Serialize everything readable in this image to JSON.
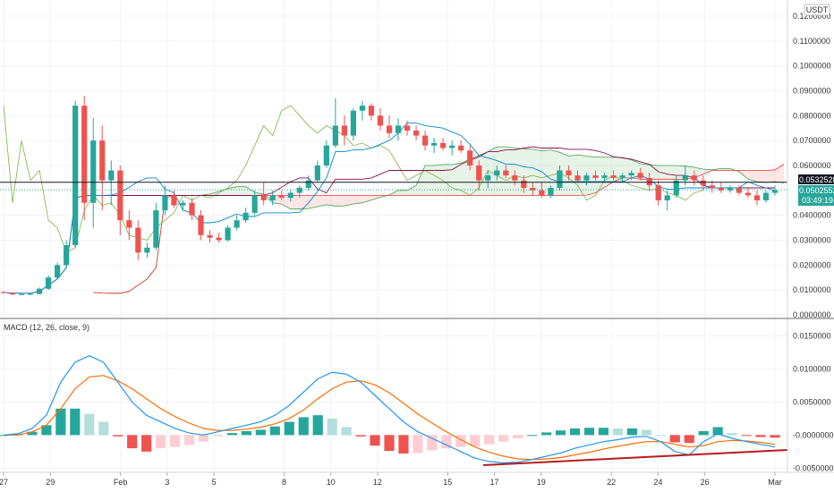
{
  "currency_badge": "USDT",
  "price_axis": {
    "labels": [
      "0.1200000",
      "0.1100000",
      "0.1000000",
      "0.0900000",
      "0.0800000",
      "0.0700000",
      "0.0600000",
      "0.0400000",
      "0.0300000",
      "0.0200000",
      "0.0100000",
      "0.0000000"
    ],
    "values": [
      0.12,
      0.11,
      0.1,
      0.09,
      0.08,
      0.07,
      0.06,
      0.04,
      0.03,
      0.02,
      0.01,
      0.0
    ]
  },
  "price_labels": {
    "black": "0.0532528",
    "green": "0.0502552",
    "countdown": "03:49:19"
  },
  "macd": {
    "legend": "MACD (12, 26, close, 9)",
    "axis_labels": [
      "0.0150000",
      "0.0100000",
      "0.0050000",
      "-0.0000000",
      "-0.0050000"
    ],
    "axis_values": [
      0.015,
      0.01,
      0.005,
      0.0,
      -0.005
    ]
  },
  "date_axis": {
    "labels": [
      "27",
      "29",
      "Feb",
      "3",
      "5",
      "8",
      "10",
      "12",
      "15",
      "17",
      "19",
      "22",
      "24",
      "26",
      "Mar"
    ],
    "positions": [
      0,
      2,
      5,
      7,
      9,
      12,
      14,
      16,
      19,
      21,
      23,
      26,
      28,
      30,
      33
    ]
  },
  "colors": {
    "up": "#26a69a",
    "down": "#ef5350",
    "macd_line": "#2196f3",
    "signal_line": "#ff6d00",
    "leading_span_a": "#43a047",
    "leading_span_b": "#e53935",
    "lagging": "#7cb342",
    "base_line": "#880e4f",
    "conversion": "#0288d1",
    "trendline": "#b71c1c"
  },
  "chart_data": [
    {
      "type": "candlestick",
      "title": "",
      "ylim": [
        0.0,
        0.125
      ],
      "horizontal_lines": [
        0.0532528,
        0.0502552
      ],
      "candles": [
        [
          0.0092,
          0.0095,
          0.0085,
          0.0088
        ],
        [
          0.0088,
          0.009,
          0.008,
          0.0082
        ],
        [
          0.0082,
          0.0086,
          0.0079,
          0.0083
        ],
        [
          0.0083,
          0.0087,
          0.008,
          0.0084
        ],
        [
          0.0084,
          0.011,
          0.0082,
          0.0105
        ],
        [
          0.0105,
          0.016,
          0.01,
          0.015
        ],
        [
          0.015,
          0.021,
          0.0145,
          0.02
        ],
        [
          0.02,
          0.03,
          0.019,
          0.028
        ],
        [
          0.028,
          0.086,
          0.027,
          0.084
        ],
        [
          0.084,
          0.088,
          0.038,
          0.045
        ],
        [
          0.045,
          0.079,
          0.035,
          0.07
        ],
        [
          0.07,
          0.076,
          0.042,
          0.054
        ],
        [
          0.054,
          0.062,
          0.044,
          0.058
        ],
        [
          0.058,
          0.06,
          0.032,
          0.038
        ],
        [
          0.038,
          0.042,
          0.03,
          0.035
        ],
        [
          0.035,
          0.038,
          0.022,
          0.025
        ],
        [
          0.025,
          0.029,
          0.023,
          0.027
        ],
        [
          0.027,
          0.045,
          0.026,
          0.042
        ],
        [
          0.042,
          0.052,
          0.04,
          0.048
        ],
        [
          0.048,
          0.05,
          0.043,
          0.044
        ],
        [
          0.044,
          0.046,
          0.042,
          0.045
        ],
        [
          0.045,
          0.047,
          0.038,
          0.04
        ],
        [
          0.04,
          0.042,
          0.03,
          0.032
        ],
        [
          0.032,
          0.034,
          0.029,
          0.031
        ],
        [
          0.031,
          0.033,
          0.029,
          0.03
        ],
        [
          0.03,
          0.036,
          0.0295,
          0.035
        ],
        [
          0.035,
          0.04,
          0.034,
          0.038
        ],
        [
          0.038,
          0.043,
          0.037,
          0.041
        ],
        [
          0.041,
          0.05,
          0.04,
          0.048
        ],
        [
          0.048,
          0.053,
          0.044,
          0.046
        ],
        [
          0.046,
          0.05,
          0.044,
          0.048
        ],
        [
          0.048,
          0.05,
          0.046,
          0.047
        ],
        [
          0.047,
          0.05,
          0.0455,
          0.049
        ],
        [
          0.049,
          0.052,
          0.047,
          0.051
        ],
        [
          0.051,
          0.056,
          0.05,
          0.054
        ],
        [
          0.054,
          0.062,
          0.053,
          0.06
        ],
        [
          0.06,
          0.07,
          0.059,
          0.068
        ],
        [
          0.068,
          0.087,
          0.067,
          0.076
        ],
        [
          0.076,
          0.08,
          0.068,
          0.072
        ],
        [
          0.072,
          0.083,
          0.07,
          0.082
        ],
        [
          0.082,
          0.086,
          0.078,
          0.084
        ],
        [
          0.084,
          0.085,
          0.078,
          0.08
        ],
        [
          0.08,
          0.083,
          0.074,
          0.076
        ],
        [
          0.076,
          0.08,
          0.071,
          0.073
        ],
        [
          0.073,
          0.079,
          0.07,
          0.076
        ],
        [
          0.076,
          0.078,
          0.072,
          0.074
        ],
        [
          0.074,
          0.076,
          0.07,
          0.072
        ],
        [
          0.072,
          0.074,
          0.066,
          0.068
        ],
        [
          0.068,
          0.071,
          0.065,
          0.069
        ],
        [
          0.069,
          0.071,
          0.066,
          0.067
        ],
        [
          0.067,
          0.07,
          0.064,
          0.068
        ],
        [
          0.068,
          0.07,
          0.065,
          0.066
        ],
        [
          0.066,
          0.068,
          0.058,
          0.06
        ],
        [
          0.06,
          0.062,
          0.05,
          0.054
        ],
        [
          0.054,
          0.058,
          0.051,
          0.056
        ],
        [
          0.056,
          0.06,
          0.054,
          0.058
        ],
        [
          0.058,
          0.06,
          0.055,
          0.056
        ],
        [
          0.056,
          0.058,
          0.052,
          0.054
        ],
        [
          0.054,
          0.056,
          0.049,
          0.051
        ],
        [
          0.051,
          0.053,
          0.048,
          0.05
        ],
        [
          0.05,
          0.053,
          0.047,
          0.048
        ],
        [
          0.048,
          0.052,
          0.047,
          0.051
        ],
        [
          0.051,
          0.06,
          0.05,
          0.058
        ],
        [
          0.058,
          0.06,
          0.054,
          0.056
        ],
        [
          0.056,
          0.058,
          0.053,
          0.054
        ],
        [
          0.054,
          0.057,
          0.052,
          0.056
        ],
        [
          0.056,
          0.058,
          0.054,
          0.055
        ],
        [
          0.055,
          0.057,
          0.053,
          0.056
        ],
        [
          0.056,
          0.058,
          0.054,
          0.055
        ],
        [
          0.055,
          0.057,
          0.053,
          0.056
        ],
        [
          0.056,
          0.058,
          0.054,
          0.057
        ],
        [
          0.057,
          0.059,
          0.054,
          0.055
        ],
        [
          0.055,
          0.057,
          0.05,
          0.052
        ],
        [
          0.052,
          0.054,
          0.044,
          0.046
        ],
        [
          0.046,
          0.05,
          0.042,
          0.048
        ],
        [
          0.048,
          0.056,
          0.047,
          0.054
        ],
        [
          0.054,
          0.06,
          0.052,
          0.056
        ],
        [
          0.056,
          0.058,
          0.052,
          0.054
        ],
        [
          0.054,
          0.056,
          0.05,
          0.052
        ],
        [
          0.052,
          0.054,
          0.049,
          0.051
        ],
        [
          0.051,
          0.053,
          0.049,
          0.05
        ],
        [
          0.05,
          0.052,
          0.049,
          0.051
        ],
        [
          0.051,
          0.052,
          0.048,
          0.049
        ],
        [
          0.049,
          0.051,
          0.047,
          0.048
        ],
        [
          0.048,
          0.05,
          0.044,
          0.046
        ],
        [
          0.046,
          0.05,
          0.045,
          0.049
        ],
        [
          0.049,
          0.052,
          0.048,
          0.05
        ]
      ]
    },
    {
      "type": "line",
      "title": "MACD (12, 26, close, 9)",
      "ylim": [
        -0.0055,
        0.0175
      ],
      "series": [
        {
          "name": "MACD",
          "values": [
            0.0,
            0.0002,
            0.001,
            0.003,
            0.008,
            0.011,
            0.012,
            0.011,
            0.008,
            0.005,
            0.003,
            0.002,
            0.001,
            0.0003,
            0.0,
            0.0005,
            0.001,
            0.0015,
            0.002,
            0.003,
            0.0045,
            0.0065,
            0.0085,
            0.0095,
            0.0092,
            0.008,
            0.006,
            0.004,
            0.002,
            0.0005,
            -0.0005,
            -0.0015,
            -0.0025,
            -0.0035,
            -0.004,
            -0.0042,
            -0.0041,
            -0.0037,
            -0.0032,
            -0.0027,
            -0.002,
            -0.0015,
            -0.001,
            -0.0007,
            -0.0003,
            -0.0002,
            -0.001,
            -0.0025,
            -0.003,
            -0.001,
            0.0002,
            -0.0005,
            -0.001,
            -0.0014,
            -0.0018
          ]
        },
        {
          "name": "Signal",
          "values": [
            0.0,
            0.0,
            0.0005,
            0.0015,
            0.004,
            0.007,
            0.0088,
            0.009,
            0.0082,
            0.007,
            0.0055,
            0.004,
            0.0028,
            0.0018,
            0.001,
            0.0007,
            0.0007,
            0.0009,
            0.0012,
            0.0017,
            0.0025,
            0.0038,
            0.0055,
            0.007,
            0.008,
            0.0082,
            0.0076,
            0.0064,
            0.0048,
            0.0032,
            0.0018,
            0.0005,
            -0.0007,
            -0.0018,
            -0.0026,
            -0.0032,
            -0.0036,
            -0.0037,
            -0.0036,
            -0.0034,
            -0.003,
            -0.0026,
            -0.0021,
            -0.0017,
            -0.0013,
            -0.001,
            -0.001,
            -0.0014,
            -0.0018,
            -0.0016,
            -0.001,
            -0.0008,
            -0.0009,
            -0.0011,
            -0.0014
          ]
        },
        {
          "name": "Histogram",
          "values": [
            0.0,
            0.0002,
            0.0005,
            0.0015,
            0.004,
            0.004,
            0.0032,
            0.002,
            -0.0002,
            -0.002,
            -0.0025,
            -0.002,
            -0.0018,
            -0.0015,
            -0.001,
            -0.0002,
            0.0003,
            0.0006,
            0.0008,
            0.0013,
            0.002,
            0.0027,
            0.003,
            0.0025,
            0.0012,
            -0.0002,
            -0.0016,
            -0.0024,
            -0.0028,
            -0.0027,
            -0.0023,
            -0.002,
            -0.0018,
            -0.0017,
            -0.0014,
            -0.001,
            -0.0005,
            0.0,
            0.0004,
            0.0007,
            0.001,
            0.0011,
            0.0011,
            0.001,
            0.001,
            0.0008,
            0.0,
            -0.0011,
            -0.0012,
            0.0006,
            0.0012,
            0.0003,
            -0.0001,
            -0.0003,
            -0.0004
          ]
        }
      ]
    }
  ]
}
